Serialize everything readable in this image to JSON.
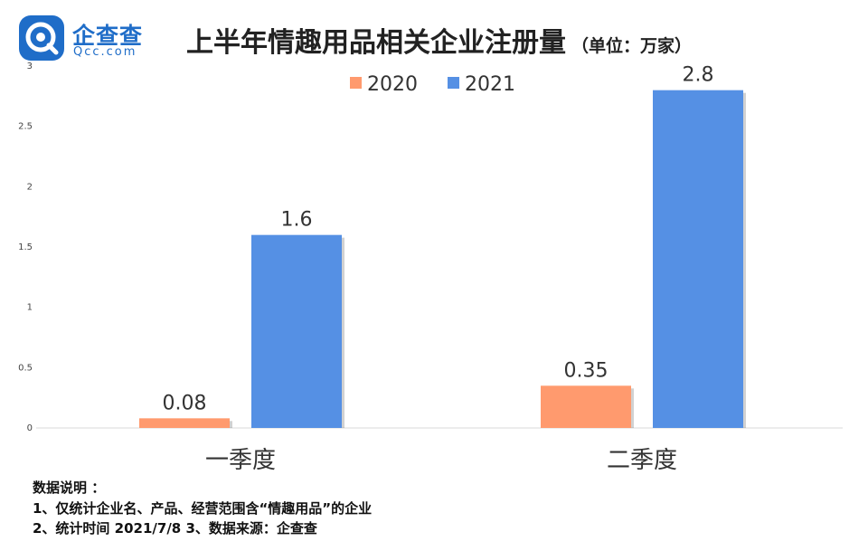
{
  "logo": {
    "name_cn": "企查查",
    "name_en": "Qcc.com",
    "brand_color": "#1f6dc8"
  },
  "chart_data": {
    "type": "bar",
    "title": "上半年情趣用品相关企业注册量",
    "subtitle": "（单位：万家）",
    "xlabel": "",
    "ylabel": "",
    "categories": [
      "一季度",
      "二季度"
    ],
    "series": [
      {
        "name": "2020",
        "values": [
          0.08,
          0.35
        ],
        "color": "#ff9a6e"
      },
      {
        "name": "2021",
        "values": [
          1.6,
          2.8
        ],
        "color": "#5590e4"
      }
    ],
    "ylim": [
      0,
      3
    ],
    "yticks": [
      0,
      0.5,
      1,
      1.5,
      2,
      2.5,
      3
    ],
    "ytick_labels": [
      "0",
      "0.5",
      "1",
      "1.5",
      "2",
      "2.5",
      "3"
    ],
    "data_labels": [
      [
        "0.08",
        "0.35"
      ],
      [
        "1.6",
        "2.8"
      ]
    ],
    "grid": false,
    "legend": "top-center"
  },
  "notes": {
    "heading": "数据说明 ：",
    "line1": "1、仅统计企业名、产品、经营范围含“情趣用品”的企业",
    "line2": "2、统计时间 2021/7/8    3、数据来源：企查查"
  }
}
